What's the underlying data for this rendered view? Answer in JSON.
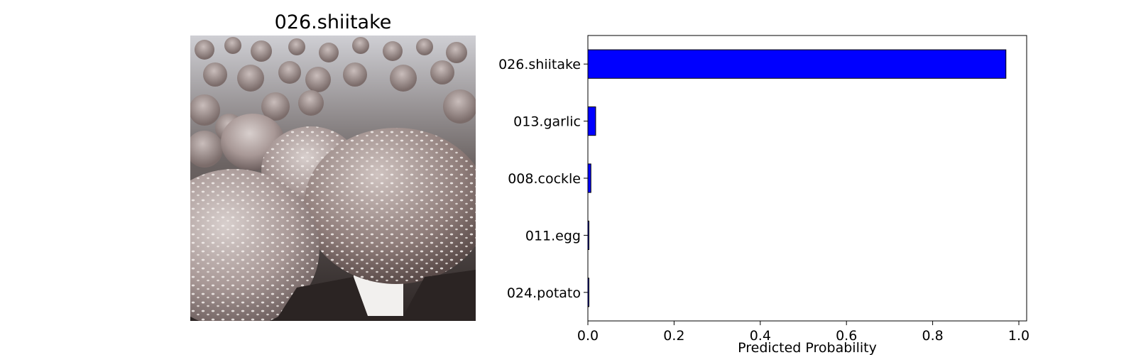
{
  "image_panel": {
    "title": "026.shiitake",
    "photo_icon": "mushroom-photo"
  },
  "chart_data": {
    "type": "bar",
    "orientation": "horizontal",
    "categories": [
      "026.shiitake",
      "013.garlic",
      "008.cockle",
      "011.egg",
      "024.potato"
    ],
    "values": [
      0.97,
      0.018,
      0.007,
      0.002,
      0.002
    ],
    "xlabel": "Predicted Probability",
    "ylabel": "",
    "xlim": [
      0,
      1.0
    ],
    "xticks": [
      "0.0",
      "0.2",
      "0.4",
      "0.6",
      "0.8",
      "1.0"
    ],
    "bar_color": "#0000ff",
    "edge_color": "#000000",
    "grid": false
  }
}
